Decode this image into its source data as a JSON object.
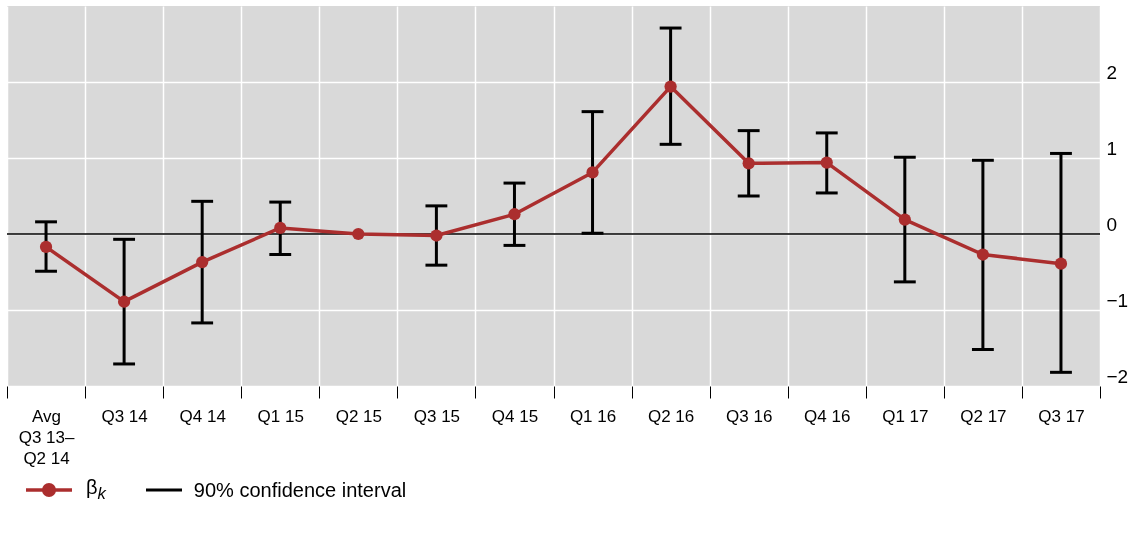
{
  "chart_data": {
    "type": "line",
    "categories": [
      "Avg\nQ3 13–\nQ2 14",
      "Q3 14",
      "Q4 14",
      "Q1 15",
      "Q2 15",
      "Q3 15",
      "Q4 15",
      "Q1 16",
      "Q2 16",
      "Q3 16",
      "Q4 16",
      "Q1 17",
      "Q2 17",
      "Q3 17"
    ],
    "series": [
      {
        "name": "β$_{k}$",
        "color": "#ab2e2e",
        "values": [
          -0.17,
          -0.89,
          -0.37,
          0.08,
          0,
          -0.02,
          0.26,
          0.81,
          1.94,
          0.93,
          0.94,
          0.19,
          -0.27,
          -0.39
        ],
        "errors": [
          [
            -0.49,
            0.16
          ],
          [
            -1.71,
            -0.07
          ],
          [
            -1.17,
            0.43
          ],
          [
            -0.27,
            0.42
          ],
          null,
          [
            -0.41,
            0.37
          ],
          [
            -0.15,
            0.67
          ],
          [
            0.01,
            1.61
          ],
          [
            1.18,
            2.71
          ],
          [
            0.5,
            1.36
          ],
          [
            0.54,
            1.33
          ],
          [
            -0.63,
            1.01
          ],
          [
            -1.52,
            0.97
          ],
          [
            -1.82,
            1.06
          ]
        ]
      }
    ],
    "ylim": [
      -2,
      3
    ],
    "yticks": [
      {
        "value": -2,
        "label": "−2"
      },
      {
        "value": -1,
        "label": "−1"
      },
      0,
      1,
      2
    ],
    "ref_lines": [
      {
        "axis": "y",
        "value": 0,
        "color": "#000000"
      }
    ],
    "annotations": [
      "90% confidence interval"
    ],
    "grid": true,
    "marker": "circle",
    "line_style": "solid",
    "legend": "bottom left"
  }
}
